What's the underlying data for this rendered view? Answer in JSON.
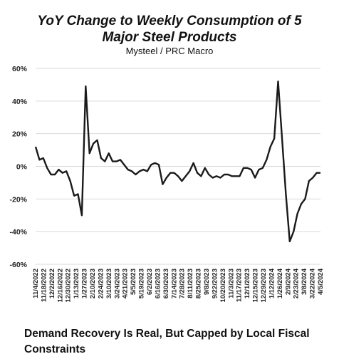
{
  "chart_data": {
    "type": "line",
    "title_lines": [
      "YoY Change to Weekly Consumption of 5",
      "Major Steel Products"
    ],
    "subtitle": "Mysteel / PRC Macro",
    "y_ticks": [
      "60%",
      "40%",
      "20%",
      "0%",
      "-20%",
      "-40%",
      "-60%"
    ],
    "ylim": [
      -60,
      60
    ],
    "grid": true,
    "x_tick_labels": [
      "11/4/2022",
      "11/18/2022",
      "12/2/2022",
      "12/16/2022",
      "12/30/2022",
      "1/13/2023",
      "1/27/2023",
      "2/10/2023",
      "2/24/2023",
      "3/10/2023",
      "3/24/2023",
      "4/21/2023",
      "5/5/2023",
      "5/19/2023",
      "6/2/2023",
      "6/16/2023",
      "6/30/2023",
      "7/14/2023",
      "7/28/2023",
      "8/11/2023",
      "8/25/2023",
      "9/8/2023",
      "9/22/2023",
      "10/20/2023",
      "11/3/2023",
      "11/17/2023",
      "12/1/2023",
      "12/15/2023",
      "12/29/2023",
      "1/12/2024",
      "1/26/2024",
      "2/9/2024",
      "2/23/2024",
      "3/8/2024",
      "3/22/2024",
      "4/5/2024"
    ],
    "series": [
      {
        "color": "#1a1a1a",
        "values": [
          12,
          4,
          5,
          -1,
          -5,
          -5,
          -2,
          -4,
          -3,
          -9,
          -18,
          -17,
          -30,
          49,
          8,
          14,
          16,
          5,
          3,
          8,
          3,
          3,
          4,
          1,
          -2,
          -3,
          -5,
          -3,
          -2,
          -3,
          1,
          2,
          1,
          -11,
          -7,
          -4,
          -4,
          -6,
          -9,
          -6,
          -3,
          2,
          -4,
          -6,
          -1,
          -5,
          -7,
          -6,
          -7,
          -5,
          -5,
          -6,
          -6,
          -6,
          -1,
          -1,
          -2,
          -7,
          -2,
          -1,
          4,
          12,
          17,
          52,
          18,
          -17,
          -46,
          -40,
          -29,
          -23,
          -20,
          -9,
          -7,
          -4,
          -4
        ]
      }
    ]
  },
  "caption": "Demand Recovery Is Real, But Capped by Local Fiscal Constraints"
}
